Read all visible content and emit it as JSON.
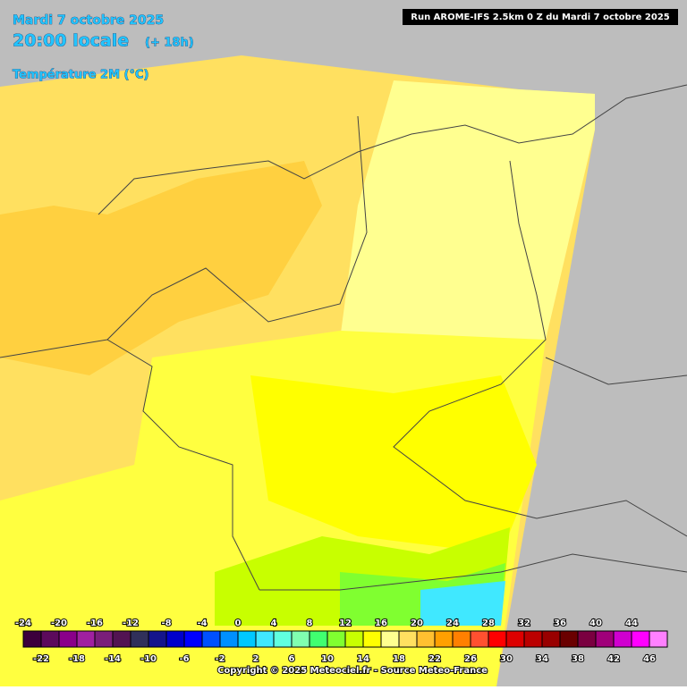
{
  "header": {
    "date": "Mardi 7 octobre 2025",
    "time": "20:00 locale",
    "lead": "(+ 18h)",
    "field": "Température 2M (°C)",
    "run": "Run AROME-IFS 2.5km 0 Z du Mardi 7 octobre 2025"
  },
  "legend": {
    "values": [
      -24,
      -22,
      -20,
      -18,
      -16,
      -14,
      -12,
      -10,
      -8,
      -6,
      -4,
      -2,
      0,
      2,
      4,
      6,
      8,
      10,
      12,
      14,
      16,
      18,
      20,
      22,
      24,
      26,
      28,
      30,
      32,
      34,
      36,
      38,
      40,
      42,
      44,
      46
    ],
    "colors": [
      "#3c003c",
      "#5c0a5c",
      "#8a008a",
      "#a020a0",
      "#7a1e7a",
      "#521452",
      "#30305a",
      "#14148c",
      "#0000cc",
      "#0000ff",
      "#0050ff",
      "#0090ff",
      "#00c8ff",
      "#40e8ff",
      "#60ffe0",
      "#80ffb0",
      "#40ff70",
      "#80ff30",
      "#c8ff00",
      "#ffff00",
      "#ffff90",
      "#ffe060",
      "#ffc030",
      "#ffa000",
      "#ff8000",
      "#ff5030",
      "#ff0000",
      "#dd0000",
      "#bb0000",
      "#990000",
      "#6a0000",
      "#7a0040",
      "#a0007a",
      "#d000d0",
      "#ff00ff",
      "#ff80ff"
    ]
  },
  "footer": {
    "copyright": "Copyright © 2025 Meteociel.fr - Source Meteo-France"
  }
}
